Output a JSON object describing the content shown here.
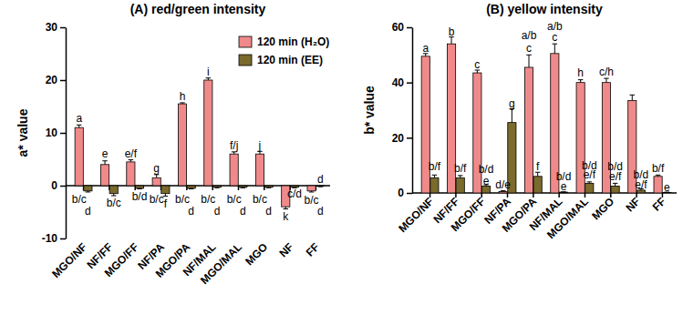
{
  "chart_data": [
    {
      "type": "bar",
      "title": "(A) red/green intensity",
      "y_label": "a* value",
      "categories": [
        "MGO/NF",
        "NF/FF",
        "MGO/FF",
        "NF/PA",
        "MGO/PA",
        "NF/MAL",
        "MGO/MAL",
        "MGO",
        "NF",
        "FF"
      ],
      "series": [
        {
          "name": "120 min (H₂O)",
          "color": "#f08a8a",
          "values": [
            11,
            4,
            4.5,
            1.5,
            15.5,
            20,
            6,
            6,
            -4,
            -1
          ],
          "errors": [
            0.5,
            0.7,
            0.4,
            0.6,
            0.2,
            0.4,
            0.4,
            0.5,
            0.4,
            0.2
          ]
        },
        {
          "name": "120 min (EE)",
          "color": "#7a6a2c",
          "values": [
            -1,
            -1.5,
            -0.5,
            -1.5,
            -0.5,
            -0.3,
            -0.3,
            -0.3,
            -0.3,
            -0.1
          ],
          "errors": [
            0.2,
            0.4,
            0.1,
            0.5,
            0.1,
            0.1,
            0.1,
            0.1,
            0.1,
            0.1
          ]
        }
      ],
      "annotations": [
        {
          "text": "a",
          "category": 0,
          "series": 0,
          "y": 12.8
        },
        {
          "text": "b/c",
          "category": 0,
          "series": 0,
          "y": -2.5
        },
        {
          "text": "d",
          "category": 0,
          "series": 1,
          "y": -4.8
        },
        {
          "text": "e",
          "category": 1,
          "series": 0,
          "y": 6
        },
        {
          "text": "b/c",
          "category": 1,
          "series": 1,
          "y": -3.2
        },
        {
          "text": "e/f",
          "category": 2,
          "series": 0,
          "y": 6
        },
        {
          "text": "b/d",
          "category": 2,
          "series": 1,
          "y": -2
        },
        {
          "text": "g",
          "category": 3,
          "series": 0,
          "y": 3.3
        },
        {
          "text": "b/c",
          "category": 3,
          "series": 0,
          "y": -2.5
        },
        {
          "text": "f",
          "category": 3,
          "series": 1,
          "y": -3.4
        },
        {
          "text": "h",
          "category": 4,
          "series": 0,
          "y": 17
        },
        {
          "text": "b/c",
          "category": 4,
          "series": 0,
          "y": -2.5
        },
        {
          "text": "d",
          "category": 4,
          "series": 1,
          "y": -4.8
        },
        {
          "text": "i",
          "category": 5,
          "series": 0,
          "y": 21.6
        },
        {
          "text": "b/c",
          "category": 5,
          "series": 0,
          "y": -2.5
        },
        {
          "text": "d",
          "category": 5,
          "series": 1,
          "y": -4.8
        },
        {
          "text": "f/j",
          "category": 6,
          "series": 0,
          "y": 7.6
        },
        {
          "text": "b/c",
          "category": 6,
          "series": 0,
          "y": -2.5
        },
        {
          "text": "d",
          "category": 6,
          "series": 1,
          "y": -4.8
        },
        {
          "text": "j",
          "category": 7,
          "series": 0,
          "y": 7.6
        },
        {
          "text": "b/c",
          "category": 7,
          "series": 0,
          "y": -2.5
        },
        {
          "text": "d",
          "category": 7,
          "series": 1,
          "y": -4.8
        },
        {
          "text": "k",
          "category": 8,
          "series": 0,
          "y": -5.8
        },
        {
          "text": "c/d",
          "category": 8,
          "series": 1,
          "y": -1.6
        },
        {
          "text": "d",
          "category": 9,
          "series": 1,
          "y": 1.2
        },
        {
          "text": "b/c",
          "category": 9,
          "series": 0,
          "y": -2.8
        },
        {
          "text": "d",
          "category": 9,
          "series": 1,
          "y": -4.8
        }
      ],
      "ylim": [
        -10,
        30
      ],
      "yticks": [
        -10,
        0,
        10,
        20,
        30
      ],
      "legend": "top-right"
    },
    {
      "type": "bar",
      "title": "(B) yellow intensity",
      "y_label": "b* value",
      "categories": [
        "MGO/NF",
        "NF/FF",
        "MGO/FF",
        "NF/PA",
        "MGO/PA",
        "NF/MAL",
        "MGO/MAL",
        "MGO",
        "NF",
        "FF"
      ],
      "series": [
        {
          "name": "120 min (H₂O)",
          "color": "#f08a8a",
          "values": [
            49.5,
            54,
            43.5,
            0.5,
            45.5,
            50.5,
            40,
            40,
            33.5,
            6
          ],
          "errors": [
            1,
            2.5,
            1,
            0.3,
            4.5,
            3.5,
            1,
            1.5,
            2,
            0.5
          ]
        },
        {
          "name": "120 min (EE)",
          "color": "#7a6a2c",
          "values": [
            5.5,
            5.5,
            2.5,
            25.5,
            6,
            0.3,
            3.5,
            2.5,
            1,
            0.2
          ],
          "errors": [
            1,
            0.8,
            0.5,
            5,
            1.5,
            0.1,
            0.5,
            1,
            0.5,
            0.1
          ]
        }
      ],
      "annotations": [
        {
          "text": "a",
          "category": 0,
          "series": 0,
          "y": 52.5
        },
        {
          "text": "b/f",
          "category": 0,
          "series": 1,
          "y": 9.5
        },
        {
          "text": "b",
          "category": 1,
          "series": 0,
          "y": 58.5
        },
        {
          "text": "b/f",
          "category": 1,
          "series": 1,
          "y": 9
        },
        {
          "text": "c",
          "category": 2,
          "series": 0,
          "y": 46.5
        },
        {
          "text": "b/d",
          "category": 2,
          "series": 1,
          "y": 8.5
        },
        {
          "text": "e",
          "category": 2,
          "series": 1,
          "y": 4.5
        },
        {
          "text": "d/e",
          "category": 3,
          "series": 0,
          "y": 3
        },
        {
          "text": "g",
          "category": 3,
          "series": 1,
          "y": 32.5
        },
        {
          "text": "a/b",
          "category": 4,
          "series": 0,
          "y": 57
        },
        {
          "text": "c",
          "category": 4,
          "series": 0,
          "y": 52.5
        },
        {
          "text": "f",
          "category": 4,
          "series": 1,
          "y": 9.5
        },
        {
          "text": "a/b",
          "category": 5,
          "series": 0,
          "y": 60.5
        },
        {
          "text": "c",
          "category": 5,
          "series": 0,
          "y": 56.5
        },
        {
          "text": "b/d",
          "category": 5,
          "series": 1,
          "y": 6
        },
        {
          "text": "e",
          "category": 5,
          "series": 1,
          "y": 2.5
        },
        {
          "text": "h",
          "category": 6,
          "series": 0,
          "y": 43.5
        },
        {
          "text": "b/d",
          "category": 6,
          "series": 1,
          "y": 10
        },
        {
          "text": "e/f",
          "category": 6,
          "series": 1,
          "y": 6.5
        },
        {
          "text": "c/h",
          "category": 7,
          "series": 0,
          "y": 44
        },
        {
          "text": "b/d",
          "category": 7,
          "series": 1,
          "y": 9.5
        },
        {
          "text": "e/f",
          "category": 7,
          "series": 1,
          "y": 6
        },
        {
          "text": "b/d",
          "category": 8,
          "series": 1,
          "y": 6.5
        },
        {
          "text": "e/f",
          "category": 8,
          "series": 1,
          "y": 3
        },
        {
          "text": "b/f",
          "category": 9,
          "series": 0,
          "y": 9
        },
        {
          "text": "e",
          "category": 9,
          "series": 1,
          "y": 2
        }
      ],
      "ylim": [
        0,
        60
      ],
      "yticks": [
        0,
        20,
        40,
        60
      ]
    }
  ]
}
